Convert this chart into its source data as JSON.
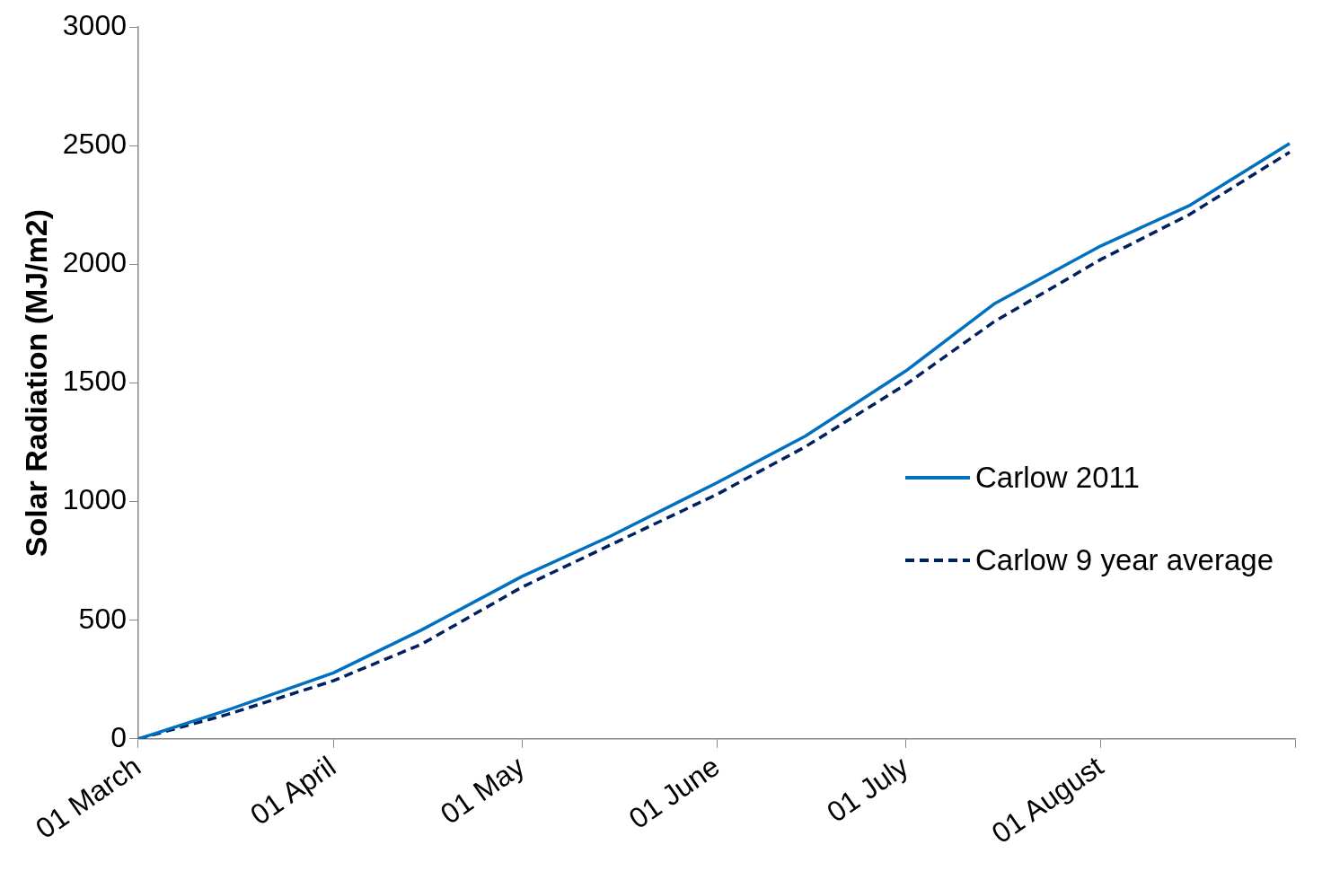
{
  "chart_data": {
    "type": "line",
    "ylabel": "Solar Radiation (MJ/m2)",
    "x": [
      "--03-01",
      "--03-15",
      "--04-01",
      "--04-15",
      "--05-01",
      "--05-15",
      "--06-01",
      "--06-15",
      "--07-01",
      "--07-15",
      "--08-01",
      "--08-15",
      "--08-31"
    ],
    "series": [
      {
        "name": "Carlow 2011",
        "color": "#0070c0",
        "line_style": "solid",
        "values": [
          0,
          120,
          278,
          459,
          685,
          854,
          1080,
          1276,
          1551,
          1833,
          2078,
          2247,
          2510
        ]
      },
      {
        "name": "Carlow 9 year average",
        "color": "#002060",
        "line_style": "dashed",
        "values": [
          0,
          102,
          245,
          399,
          640,
          817,
          1031,
          1231,
          1494,
          1758,
          2021,
          2209,
          2473
        ]
      }
    ],
    "xlim": [
      "--03-01",
      "--09-01"
    ],
    "xticks": [
      {
        "value": "--03-01",
        "label": "01 March"
      },
      {
        "value": "--04-01",
        "label": "01 April"
      },
      {
        "value": "--05-01",
        "label": "01 May"
      },
      {
        "value": "--06-01",
        "label": "01 June"
      },
      {
        "value": "--07-01",
        "label": "01 July"
      },
      {
        "value": "--08-01",
        "label": "01 August"
      },
      {
        "value": "--09-01",
        "label": null
      }
    ],
    "ylim": [
      0,
      3000
    ],
    "yticks": [
      0,
      500,
      1000,
      1500,
      2000,
      2500,
      3000
    ],
    "grid": false,
    "legend": "right",
    "marker": "none"
  }
}
